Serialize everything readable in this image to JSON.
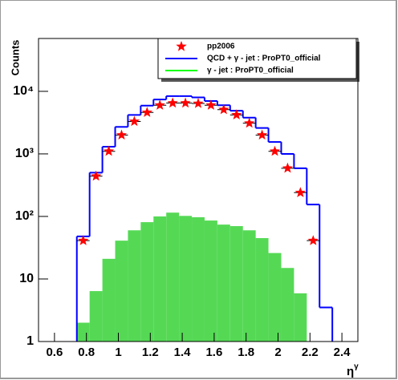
{
  "chart_data": {
    "type": "histogram",
    "xlabel": {
      "base": "η",
      "sup": "γ"
    },
    "ylabel": "Counts",
    "bins": [
      0.74,
      0.82,
      0.9,
      0.98,
      1.06,
      1.14,
      1.22,
      1.3,
      1.38,
      1.46,
      1.54,
      1.62,
      1.7,
      1.78,
      1.86,
      1.94,
      2.02,
      2.1,
      2.18,
      2.26,
      2.34
    ],
    "series": [
      {
        "name": "pp2006",
        "color": "#ff0000",
        "style": "marker",
        "values": [
          41,
          440,
          1100,
          2000,
          3300,
          4600,
          6000,
          6500,
          6500,
          6400,
          6000,
          5100,
          4200,
          3100,
          2000,
          1100,
          590,
          240,
          41,
          null
        ]
      },
      {
        "name": "QCD + γ - jet : ProPT0_official",
        "color": "#0000ff",
        "style": "step",
        "values": [
          48,
          500,
          1300,
          2700,
          4200,
          5900,
          7400,
          8400,
          8400,
          8000,
          7000,
          6000,
          4900,
          3800,
          2600,
          1550,
          1000,
          590,
          155,
          3.5
        ]
      },
      {
        "name": "γ - jet : ProPT0_official",
        "color": "#00ff00",
        "fill": "#55d955",
        "style": "fill",
        "values": [
          2,
          6.4,
          21,
          41,
          60,
          81,
          100,
          115,
          102,
          97,
          86,
          74,
          70,
          60,
          45,
          26,
          15,
          5.9,
          null,
          null
        ]
      }
    ],
    "xlim": [
      0.5,
      2.5
    ],
    "ylim": [
      1,
      70000
    ],
    "log_y": true,
    "xticks": [
      0.6,
      0.8,
      1,
      1.2,
      1.4,
      1.6,
      1.8,
      2,
      2.2,
      2.4
    ],
    "yticks": [
      1,
      10,
      {
        "value": 100,
        "label": "10²"
      },
      {
        "value": 1000,
        "label": "10³"
      },
      {
        "value": 10000,
        "label": "10⁴"
      }
    ],
    "legend": "upper right"
  }
}
